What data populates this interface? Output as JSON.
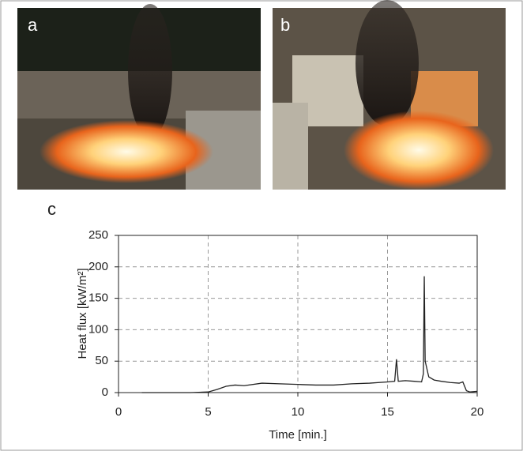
{
  "panel_labels": [
    "a",
    "b",
    "c"
  ],
  "chart_data": {
    "type": "line",
    "xlabel": "Time [min.]",
    "ylabel": "Heat flux [kW/m²]",
    "x": [
      1.3,
      2,
      3,
      4,
      5,
      5.5,
      6,
      6.5,
      7,
      8,
      9,
      10,
      11,
      12,
      13,
      14,
      15,
      15.4,
      15.5,
      15.6,
      16,
      16.5,
      16.9,
      17.0,
      17.05,
      17.1,
      17.3,
      17.6,
      18,
      18.5,
      19,
      19.2,
      19.4,
      19.6,
      20
    ],
    "values": [
      0,
      0,
      0,
      0,
      1,
      5,
      10,
      12,
      11,
      15,
      14,
      13,
      12,
      12,
      14,
      15,
      17,
      18,
      53,
      18,
      19,
      18,
      17,
      30,
      185,
      50,
      25,
      20,
      18,
      16,
      15,
      17,
      3,
      1,
      2
    ],
    "color": "#222222",
    "xlim": [
      0,
      20
    ],
    "ylim": [
      0,
      250
    ],
    "xticks": [
      0,
      5,
      10,
      15,
      20
    ],
    "yticks": [
      0,
      50,
      100,
      150,
      200,
      250
    ],
    "grid": true
  }
}
